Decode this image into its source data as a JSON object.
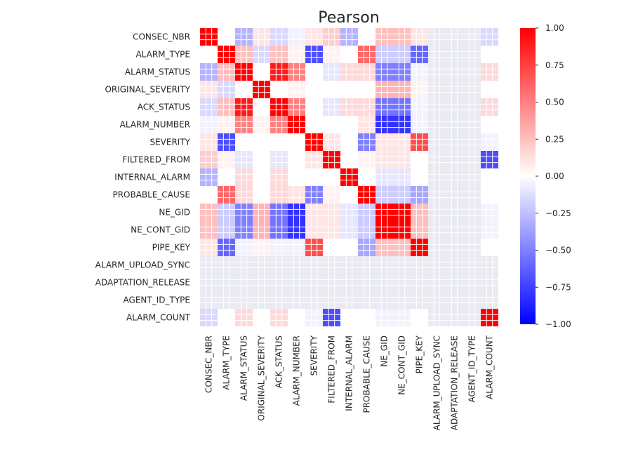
{
  "chart_data": {
    "type": "heatmap",
    "title": "Pearson",
    "labels": [
      "CONSEC_NBR",
      "ALARM_TYPE",
      "ALARM_STATUS",
      "ORIGINAL_SEVERITY",
      "ACK_STATUS",
      "ALARM_NUMBER",
      "SEVERITY",
      "FILTERED_FROM",
      "INTERNAL_ALARM",
      "PROBABLE_CAUSE",
      "NE_GID",
      "NE_CONT_GID",
      "PIPE_KEY",
      "ALARM_UPLOAD_SYNC",
      "ADAPTATION_RELEASE",
      "AGENT_ID_TYPE",
      "ALARM_COUNT"
    ],
    "values": [
      [
        1.0,
        0.0,
        -0.3,
        0.1,
        -0.15,
        -0.05,
        0.1,
        0.2,
        -0.3,
        0.0,
        0.25,
        0.25,
        0.1,
        null,
        null,
        null,
        -0.15
      ],
      [
        0.0,
        1.0,
        0.25,
        -0.15,
        0.25,
        0.05,
        -0.7,
        0.05,
        0.0,
        0.6,
        -0.2,
        -0.2,
        -0.6,
        null,
        null,
        null,
        0.0
      ],
      [
        -0.3,
        0.25,
        1.0,
        0.0,
        0.9,
        0.5,
        0.0,
        -0.1,
        0.15,
        0.15,
        -0.5,
        -0.5,
        -0.05,
        null,
        null,
        null,
        0.15
      ],
      [
        0.1,
        -0.15,
        0.0,
        1.0,
        0.0,
        0.05,
        0.0,
        0.0,
        0.0,
        0.0,
        0.3,
        0.3,
        0.05,
        null,
        null,
        null,
        0.0
      ],
      [
        -0.15,
        0.25,
        0.9,
        0.0,
        1.0,
        0.5,
        0.0,
        -0.1,
        0.15,
        0.15,
        -0.55,
        -0.55,
        -0.05,
        null,
        null,
        null,
        0.15
      ],
      [
        -0.05,
        0.05,
        0.5,
        0.05,
        0.5,
        1.0,
        0.0,
        0.0,
        0.0,
        0.1,
        -0.8,
        -0.8,
        -0.05,
        null,
        null,
        null,
        0.0
      ],
      [
        0.1,
        -0.7,
        0.0,
        0.0,
        0.0,
        0.0,
        1.0,
        0.1,
        0.0,
        -0.5,
        0.1,
        0.1,
        0.7,
        null,
        null,
        null,
        -0.05
      ],
      [
        0.2,
        0.05,
        -0.1,
        0.0,
        -0.1,
        0.0,
        0.1,
        1.0,
        0.0,
        0.05,
        0.1,
        0.1,
        0.0,
        null,
        null,
        null,
        -0.7
      ],
      [
        -0.3,
        0.0,
        0.15,
        0.0,
        0.15,
        0.0,
        0.0,
        0.0,
        1.0,
        0.0,
        -0.1,
        -0.1,
        0.0,
        null,
        null,
        null,
        0.0
      ],
      [
        0.0,
        0.6,
        0.15,
        0.0,
        0.15,
        0.1,
        -0.5,
        0.05,
        0.0,
        1.0,
        -0.2,
        -0.2,
        -0.35,
        null,
        null,
        null,
        0.0
      ],
      [
        0.25,
        -0.2,
        -0.5,
        0.3,
        -0.55,
        -0.8,
        0.1,
        0.1,
        -0.1,
        -0.2,
        1.0,
        1.0,
        0.25,
        null,
        null,
        null,
        -0.05
      ],
      [
        0.25,
        -0.2,
        -0.5,
        0.3,
        -0.55,
        -0.8,
        0.1,
        0.1,
        -0.1,
        -0.2,
        1.0,
        1.0,
        0.25,
        null,
        null,
        null,
        -0.05
      ],
      [
        0.1,
        -0.6,
        -0.05,
        0.05,
        -0.05,
        -0.05,
        0.7,
        0.0,
        0.0,
        -0.35,
        0.25,
        0.25,
        1.0,
        null,
        null,
        null,
        0.0
      ],
      [
        null,
        null,
        null,
        null,
        null,
        null,
        null,
        null,
        null,
        null,
        null,
        null,
        null,
        null,
        null,
        null,
        null
      ],
      [
        null,
        null,
        null,
        null,
        null,
        null,
        null,
        null,
        null,
        null,
        null,
        null,
        null,
        null,
        null,
        null,
        null
      ],
      [
        null,
        null,
        null,
        null,
        null,
        null,
        null,
        null,
        null,
        null,
        null,
        null,
        null,
        null,
        null,
        null,
        null
      ],
      [
        -0.15,
        0.0,
        0.15,
        0.0,
        0.15,
        0.0,
        -0.05,
        -0.7,
        0.0,
        0.0,
        -0.05,
        -0.05,
        0.0,
        null,
        null,
        null,
        1.0
      ]
    ],
    "colormap": "bwr",
    "vmin": -1.0,
    "vmax": 1.0,
    "missing_color": "#eaeaf2",
    "colorbar_ticks": [
      "1.00",
      "0.75",
      "0.50",
      "0.25",
      "0.00",
      "−0.25",
      "−0.50",
      "−0.75",
      "−1.00"
    ],
    "colorbar_tick_values": [
      1.0,
      0.75,
      0.5,
      0.25,
      0.0,
      -0.25,
      -0.5,
      -0.75,
      -1.0
    ]
  }
}
